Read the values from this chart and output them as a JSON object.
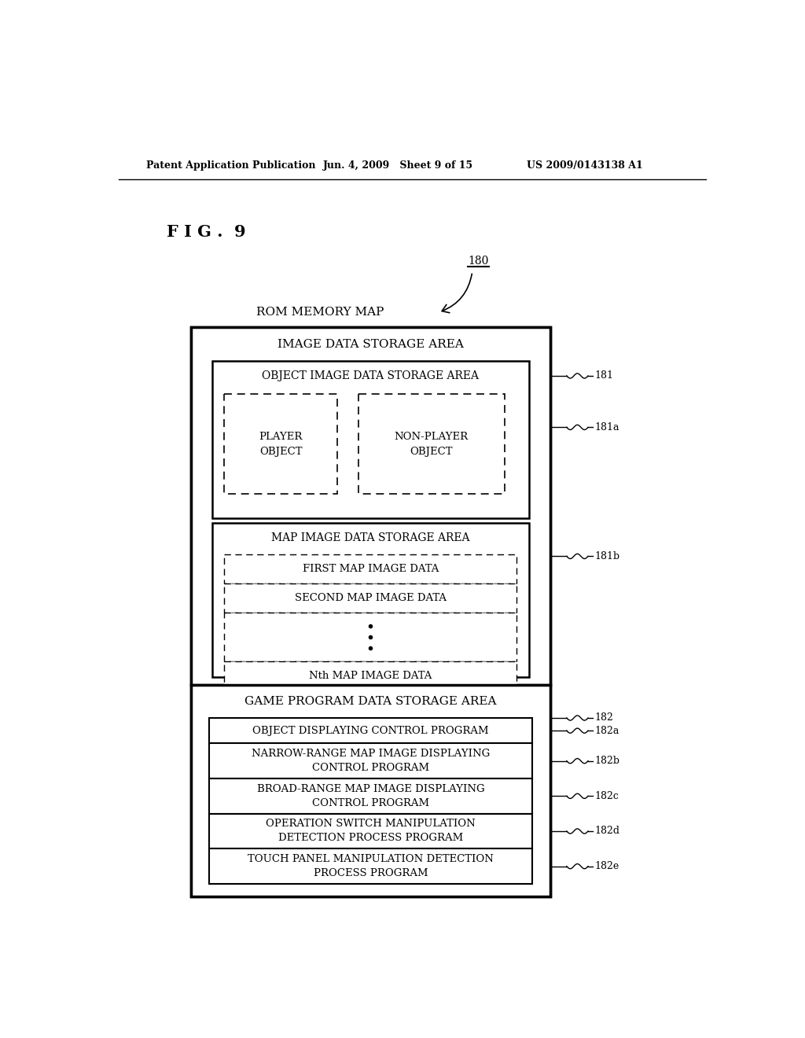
{
  "title_left": "Patent Application Publication",
  "title_mid": "Jun. 4, 2009   Sheet 9 of 15",
  "title_right": "US 2009/0143138 A1",
  "fig_label": "F I G .  9",
  "diagram_title": "ROM MEMORY MAP",
  "ref_180": "180",
  "ref_181": "181",
  "ref_181a": "181a",
  "ref_181b": "181b",
  "ref_182": "182",
  "ref_182a": "182a",
  "ref_182b": "182b",
  "ref_182c": "182c",
  "ref_182d": "182d",
  "ref_182e": "182e",
  "label_image_data": "IMAGE DATA STORAGE AREA",
  "label_object_image": "OBJECT IMAGE DATA STORAGE AREA",
  "label_player": "PLAYER\nOBJECT",
  "label_nonplayer": "NON-PLAYER\nOBJECT",
  "label_map_image": "MAP IMAGE DATA STORAGE AREA",
  "label_first_map": "FIRST MAP IMAGE DATA",
  "label_second_map": "SECOND MAP IMAGE DATA",
  "label_nth_map": "Nth MAP IMAGE DATA",
  "label_game_program": "GAME PROGRAM DATA STORAGE AREA",
  "label_182a": "OBJECT DISPLAYING CONTROL PROGRAM",
  "label_182b": "NARROW-RANGE MAP IMAGE DISPLAYING\nCONTROL PROGRAM",
  "label_182c": "BROAD-RANGE MAP IMAGE DISPLAYING\nCONTROL PROGRAM",
  "label_182d": "OPERATION SWITCH MANIPULATION\nDETECTION PROCESS PROGRAM",
  "label_182e": "TOUCH PANEL MANIPULATION DETECTION\nPROCESS PROGRAM",
  "bg_color": "#ffffff",
  "text_color": "#000000"
}
